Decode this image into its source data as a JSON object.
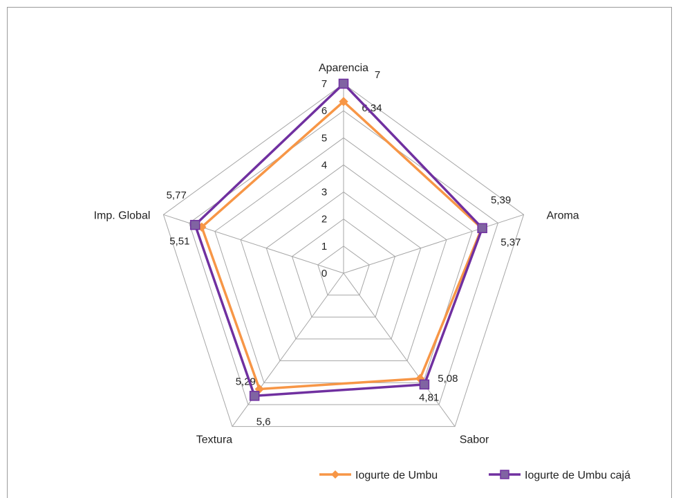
{
  "chart_data": {
    "type": "radar",
    "categories": [
      "Aparencia",
      "Aroma",
      "Sabor",
      "Textura",
      "Imp. Global"
    ],
    "rlim": [
      0,
      7
    ],
    "ticks": [
      "0",
      "1",
      "2",
      "3",
      "4",
      "5",
      "6",
      "7"
    ],
    "grid": true,
    "legend_position": "bottom-right",
    "series": [
      {
        "name": "Iogurte de Umbu",
        "color": "#f79646",
        "marker": "diamond",
        "values": [
          6.34,
          5.37,
          4.81,
          5.29,
          5.51
        ],
        "labels": [
          "6,34",
          "5,37",
          "4,81",
          "5,29",
          "5,51"
        ]
      },
      {
        "name": "Iogurte de Umbu cajá",
        "color": "#7030a0",
        "marker_color": "#8064a2",
        "marker": "square",
        "values": [
          7,
          5.39,
          5.08,
          5.6,
          5.77
        ],
        "labels": [
          "7",
          "5,39",
          "5,08",
          "5,6",
          "5,77"
        ]
      }
    ]
  }
}
